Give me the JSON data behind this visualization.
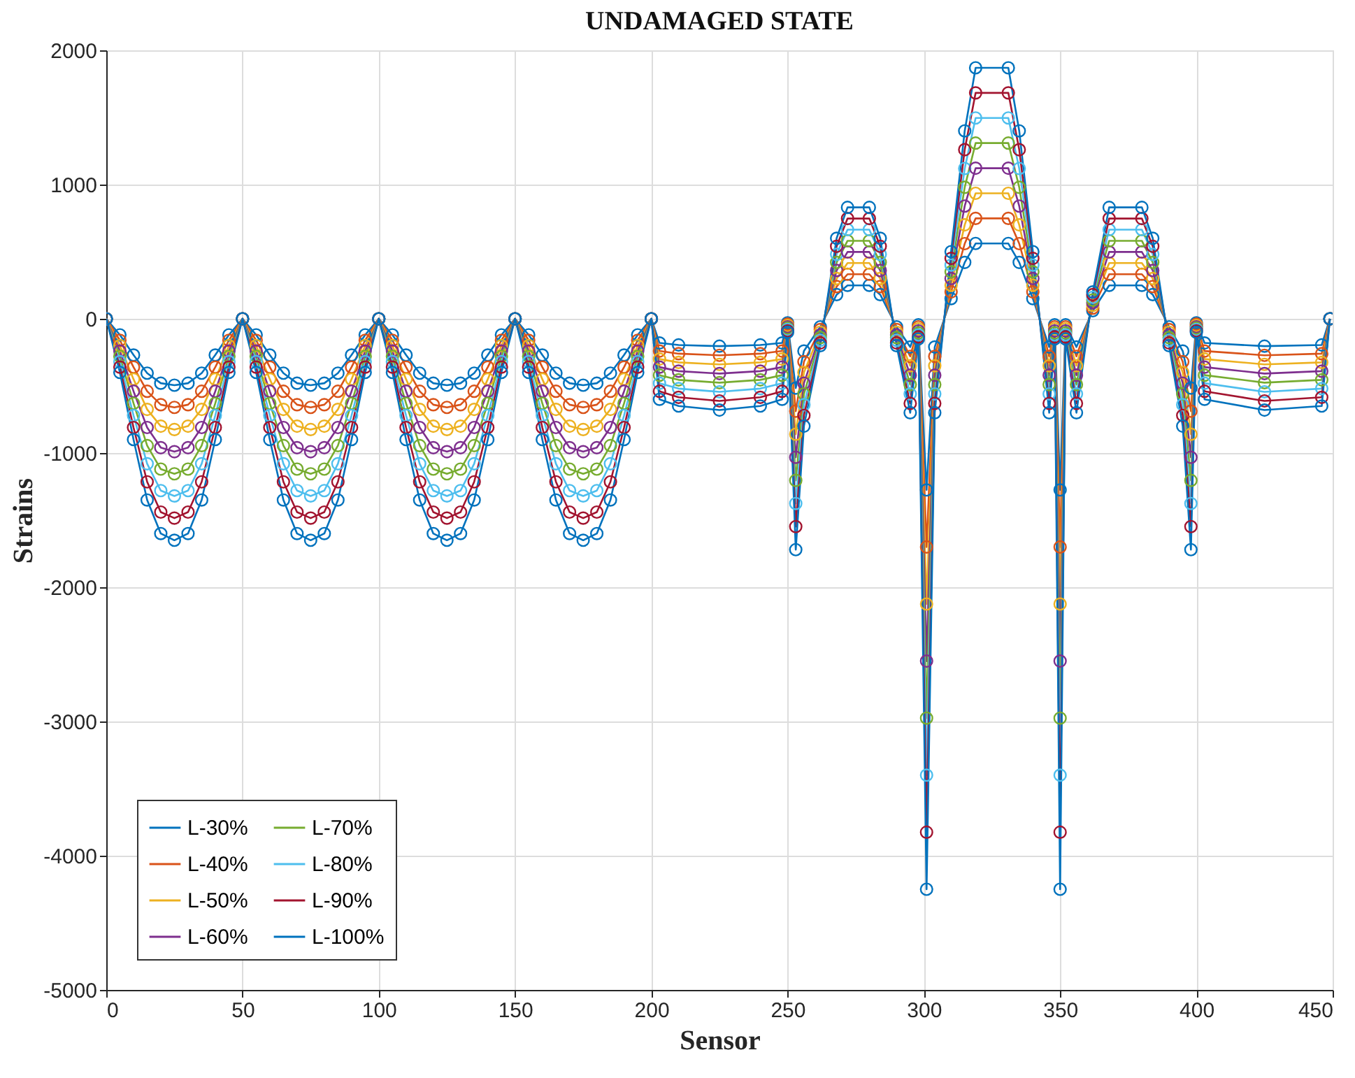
{
  "chart_data": {
    "type": "line",
    "title": "UNDAMAGED STATE",
    "xlabel": "Sensor",
    "ylabel": "Strains",
    "xlim": [
      0,
      450
    ],
    "xticks": [
      0,
      50,
      100,
      150,
      200,
      250,
      300,
      350,
      400,
      450
    ],
    "ylim": [
      -5000,
      2000
    ],
    "yticks": [
      -5000,
      -4000,
      -3000,
      -2000,
      -1000,
      0,
      1000,
      2000
    ],
    "grid": true,
    "legend": "bottom left",
    "marker": "circle",
    "line_style": "solid",
    "x": [
      0,
      5,
      10,
      15,
      20,
      25,
      30,
      35,
      40,
      45,
      50,
      55,
      60,
      65,
      70,
      75,
      80,
      85,
      90,
      95,
      100,
      105,
      110,
      115,
      120,
      125,
      130,
      135,
      140,
      145,
      150,
      155,
      160,
      165,
      170,
      175,
      180,
      185,
      190,
      195,
      200,
      203,
      210,
      225,
      240,
      248,
      250,
      253,
      256,
      262,
      268,
      272,
      280,
      284,
      290,
      295,
      298,
      301,
      304,
      310,
      315,
      319,
      331,
      335,
      340,
      346,
      348,
      350,
      352,
      356,
      362,
      368,
      380,
      384,
      390,
      395,
      398,
      400,
      403,
      425,
      446,
      449
    ],
    "series": [
      {
        "name": "L-30%",
        "color": "#0072bd",
        "values": [
          0,
          -120,
          -270,
          -405,
          -480,
          -495,
          -480,
          -405,
          -270,
          -120,
          0,
          -120,
          -270,
          -405,
          -480,
          -495,
          -480,
          -405,
          -270,
          -120,
          0,
          -120,
          -270,
          -405,
          -480,
          -495,
          -480,
          -405,
          -270,
          -120,
          0,
          -120,
          -270,
          -405,
          -480,
          -495,
          -480,
          -405,
          -270,
          -120,
          0,
          -180,
          -195,
          -204,
          -195,
          -180,
          -30,
          -516,
          -240,
          -60,
          180,
          249,
          249,
          180,
          -60,
          -210,
          -45,
          -1275,
          -210,
          150,
          420,
          561,
          561,
          420,
          150,
          -210,
          -45,
          -1275,
          -45,
          -210,
          60,
          249,
          249,
          180,
          -60,
          -240,
          -516,
          -30,
          -180,
          -204,
          -195,
          0
        ]
      },
      {
        "name": "L-40%",
        "color": "#d95319",
        "values": [
          0,
          -160,
          -360,
          -540,
          -640,
          -660,
          -640,
          -540,
          -360,
          -160,
          0,
          -160,
          -360,
          -540,
          -640,
          -660,
          -640,
          -540,
          -360,
          -160,
          0,
          -160,
          -360,
          -540,
          -640,
          -660,
          -640,
          -540,
          -360,
          -160,
          0,
          -160,
          -360,
          -540,
          -640,
          -660,
          -640,
          -540,
          -360,
          -160,
          0,
          -240,
          -260,
          -272,
          -260,
          -240,
          -40,
          -688,
          -320,
          -80,
          240,
          332,
          332,
          240,
          -80,
          -280,
          -60,
          -1700,
          -280,
          200,
          560,
          748,
          748,
          560,
          200,
          -280,
          -60,
          -1700,
          -60,
          -280,
          80,
          332,
          332,
          240,
          -80,
          -320,
          -688,
          -40,
          -240,
          -272,
          -260,
          0
        ]
      },
      {
        "name": "L-50%",
        "color": "#edb120",
        "values": [
          0,
          -200,
          -450,
          -675,
          -800,
          -825,
          -800,
          -675,
          -450,
          -200,
          0,
          -200,
          -450,
          -675,
          -800,
          -825,
          -800,
          -675,
          -450,
          -200,
          0,
          -200,
          -450,
          -675,
          -800,
          -825,
          -800,
          -675,
          -450,
          -200,
          0,
          -200,
          -450,
          -675,
          -800,
          -825,
          -800,
          -675,
          -450,
          -200,
          0,
          -300,
          -325,
          -340,
          -325,
          -300,
          -50,
          -860,
          -400,
          -100,
          300,
          415,
          415,
          300,
          -100,
          -350,
          -75,
          -2125,
          -350,
          250,
          700,
          935,
          935,
          700,
          250,
          -350,
          -75,
          -2125,
          -75,
          -350,
          100,
          415,
          415,
          300,
          -100,
          -400,
          -860,
          -50,
          -300,
          -340,
          -325,
          0
        ]
      },
      {
        "name": "L-60%",
        "color": "#7e2f8e",
        "values": [
          0,
          -240,
          -540,
          -810,
          -960,
          -990,
          -960,
          -810,
          -540,
          -240,
          0,
          -240,
          -540,
          -810,
          -960,
          -990,
          -960,
          -810,
          -540,
          -240,
          0,
          -240,
          -540,
          -810,
          -960,
          -990,
          -960,
          -810,
          -540,
          -240,
          0,
          -240,
          -540,
          -810,
          -960,
          -990,
          -960,
          -810,
          -540,
          -240,
          0,
          -360,
          -390,
          -408,
          -390,
          -360,
          -60,
          -1032,
          -480,
          -120,
          360,
          498,
          498,
          360,
          -120,
          -420,
          -90,
          -2550,
          -420,
          300,
          840,
          1122,
          1122,
          840,
          300,
          -420,
          -90,
          -2550,
          -90,
          -420,
          120,
          498,
          498,
          360,
          -120,
          -480,
          -1032,
          -60,
          -360,
          -408,
          -390,
          0
        ]
      },
      {
        "name": "L-70%",
        "color": "#77ac30",
        "values": [
          0,
          -280,
          -630,
          -945,
          -1120,
          -1155,
          -1120,
          -945,
          -630,
          -280,
          0,
          -280,
          -630,
          -945,
          -1120,
          -1155,
          -1120,
          -945,
          -630,
          -280,
          0,
          -280,
          -630,
          -945,
          -1120,
          -1155,
          -1120,
          -945,
          -630,
          -280,
          0,
          -280,
          -630,
          -945,
          -1120,
          -1155,
          -1120,
          -945,
          -630,
          -280,
          0,
          -420,
          -455,
          -476,
          -455,
          -420,
          -70,
          -1204,
          -560,
          -140,
          420,
          581,
          581,
          420,
          -140,
          -490,
          -105,
          -2975,
          -490,
          350,
          980,
          1309,
          1309,
          980,
          350,
          -490,
          -105,
          -2975,
          -105,
          -490,
          140,
          581,
          581,
          420,
          -140,
          -560,
          -1204,
          -70,
          -420,
          -476,
          -455,
          0
        ]
      },
      {
        "name": "L-80%",
        "color": "#4dbeee",
        "values": [
          0,
          -320,
          -720,
          -1080,
          -1280,
          -1320,
          -1280,
          -1080,
          -720,
          -320,
          0,
          -320,
          -720,
          -1080,
          -1280,
          -1320,
          -1280,
          -1080,
          -720,
          -320,
          0,
          -320,
          -720,
          -1080,
          -1280,
          -1320,
          -1280,
          -1080,
          -720,
          -320,
          0,
          -320,
          -720,
          -1080,
          -1280,
          -1320,
          -1280,
          -1080,
          -720,
          -320,
          0,
          -480,
          -520,
          -544,
          -520,
          -480,
          -80,
          -1376,
          -640,
          -160,
          480,
          664,
          664,
          480,
          -160,
          -560,
          -120,
          -3400,
          -560,
          400,
          1120,
          1496,
          1496,
          1120,
          400,
          -560,
          -120,
          -3400,
          -120,
          -560,
          160,
          664,
          664,
          480,
          -160,
          -640,
          -1376,
          -80,
          -480,
          -544,
          -520,
          0
        ]
      },
      {
        "name": "L-90%",
        "color": "#a2142f",
        "values": [
          0,
          -360,
          -810,
          -1215,
          -1440,
          -1485,
          -1440,
          -1215,
          -810,
          -360,
          0,
          -360,
          -810,
          -1215,
          -1440,
          -1485,
          -1440,
          -1215,
          -810,
          -360,
          0,
          -360,
          -810,
          -1215,
          -1440,
          -1485,
          -1440,
          -1215,
          -810,
          -360,
          0,
          -360,
          -810,
          -1215,
          -1440,
          -1485,
          -1440,
          -1215,
          -810,
          -360,
          0,
          -540,
          -585,
          -612,
          -585,
          -540,
          -90,
          -1548,
          -720,
          -180,
          540,
          747,
          747,
          540,
          -180,
          -630,
          -135,
          -3825,
          -630,
          450,
          1260,
          1683,
          1683,
          1260,
          450,
          -630,
          -135,
          -3825,
          -135,
          -630,
          180,
          747,
          747,
          540,
          -180,
          -720,
          -1548,
          -90,
          -540,
          -612,
          -585,
          0
        ]
      },
      {
        "name": "L-100%",
        "color": "#0072bd",
        "values": [
          0,
          -400,
          -900,
          -1350,
          -1600,
          -1650,
          -1600,
          -1350,
          -900,
          -400,
          0,
          -400,
          -900,
          -1350,
          -1600,
          -1650,
          -1600,
          -1350,
          -900,
          -400,
          0,
          -400,
          -900,
          -1350,
          -1600,
          -1650,
          -1600,
          -1350,
          -900,
          -400,
          0,
          -400,
          -900,
          -1350,
          -1600,
          -1650,
          -1600,
          -1350,
          -900,
          -400,
          0,
          -600,
          -650,
          -680,
          -650,
          -600,
          -100,
          -1720,
          -800,
          -200,
          600,
          830,
          830,
          600,
          -200,
          -700,
          -150,
          -4250,
          -700,
          500,
          1400,
          1870,
          1870,
          1400,
          500,
          -700,
          -150,
          -4250,
          -150,
          -700,
          200,
          830,
          830,
          600,
          -200,
          -800,
          -1720,
          -100,
          -600,
          -680,
          -650,
          0
        ]
      }
    ]
  }
}
